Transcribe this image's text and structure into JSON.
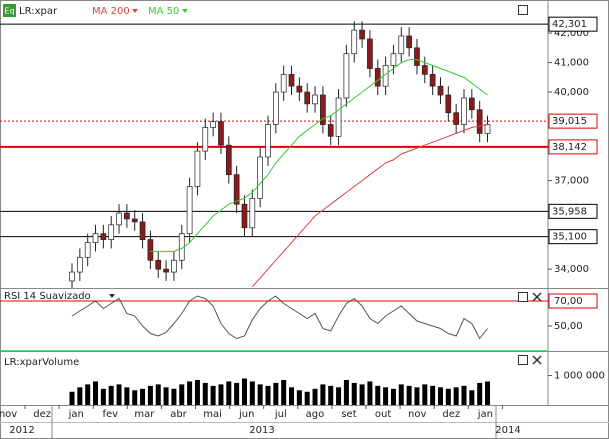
{
  "chart_data": {
    "type": "candlestick",
    "symbol": "LR:xpar",
    "symbol_icon": "Eq",
    "up_color": "#ffffff",
    "down_color": "#8b1a1a",
    "ylim": [
      33.36,
      43.12
    ],
    "yticks": [
      {
        "value": 42,
        "label": "42,000"
      },
      {
        "value": 41,
        "label": "41,000"
      },
      {
        "value": 40,
        "label": "40,000"
      },
      {
        "value": 37,
        "label": "37,000"
      },
      {
        "value": 34,
        "label": "34,000"
      }
    ],
    "candles": {
      "open": [
        33.6,
        33.9,
        34.4,
        34.9,
        35.2,
        35.0,
        35.5,
        35.9,
        35.7,
        35.6,
        35.0,
        34.3,
        34.0,
        33.9,
        34.3,
        35.2,
        36.8,
        38.0,
        38.8,
        39.0,
        38.2,
        37.2,
        36.2,
        35.4,
        36.4,
        37.8,
        38.9,
        40.0,
        40.6,
        40.2,
        40.0,
        39.6,
        39.9,
        38.9,
        38.5,
        39.8,
        41.3,
        42.1,
        41.8,
        40.8,
        40.2,
        40.9,
        41.3,
        41.9,
        41.5,
        40.9,
        40.6,
        40.2,
        39.9,
        39.3,
        38.9,
        39.8,
        39.4,
        38.6
      ],
      "high": [
        34.2,
        34.7,
        35.2,
        35.5,
        35.5,
        35.8,
        36.2,
        36.2,
        36.0,
        35.9,
        35.3,
        34.6,
        34.3,
        34.6,
        35.5,
        37.1,
        38.3,
        39.1,
        39.3,
        39.3,
        38.5,
        37.5,
        36.5,
        36.7,
        38.1,
        39.2,
        40.3,
        40.9,
        40.9,
        40.5,
        40.3,
        40.2,
        40.2,
        39.2,
        40.1,
        41.6,
        42.4,
        42.4,
        42.1,
        41.1,
        41.2,
        41.6,
        42.2,
        42.2,
        41.8,
        41.2,
        40.9,
        40.5,
        40.2,
        39.6,
        40.1,
        40.1,
        39.7,
        39.2
      ],
      "low": [
        33.3,
        33.6,
        34.1,
        34.6,
        34.7,
        34.7,
        35.2,
        35.4,
        35.3,
        34.7,
        34.0,
        33.7,
        33.6,
        33.6,
        34.0,
        34.9,
        36.5,
        37.7,
        38.5,
        37.9,
        36.9,
        35.9,
        35.1,
        35.1,
        36.1,
        37.5,
        38.6,
        39.7,
        39.9,
        39.7,
        39.3,
        39.3,
        38.6,
        38.2,
        38.2,
        39.5,
        41.0,
        41.5,
        40.5,
        39.9,
        39.9,
        40.6,
        41.0,
        41.2,
        40.6,
        40.3,
        39.9,
        39.6,
        39.0,
        38.6,
        38.6,
        39.1,
        38.3,
        38.3
      ],
      "close": [
        33.9,
        34.4,
        34.9,
        35.2,
        35.0,
        35.5,
        35.9,
        35.7,
        35.6,
        35.0,
        34.3,
        34.0,
        33.9,
        34.3,
        35.2,
        36.8,
        38.0,
        38.8,
        39.0,
        38.2,
        37.2,
        36.2,
        35.4,
        36.4,
        37.8,
        38.9,
        40.0,
        40.6,
        40.2,
        40.0,
        39.6,
        39.9,
        38.9,
        38.5,
        39.8,
        41.3,
        42.1,
        41.8,
        40.8,
        40.2,
        40.9,
        41.3,
        41.9,
        41.5,
        40.9,
        40.6,
        40.2,
        39.9,
        39.3,
        38.9,
        39.8,
        39.4,
        38.6,
        38.9
      ]
    },
    "series": [
      {
        "name": "MA 200",
        "color": "#e04040",
        "values": [
          null,
          null,
          null,
          null,
          null,
          null,
          null,
          null,
          null,
          null,
          null,
          null,
          null,
          null,
          null,
          null,
          null,
          null,
          null,
          null,
          null,
          null,
          null,
          33.4,
          33.7,
          34.0,
          34.3,
          34.6,
          34.9,
          35.2,
          35.5,
          35.8,
          36.0,
          36.2,
          36.4,
          36.6,
          36.8,
          37.0,
          37.2,
          37.4,
          37.6,
          37.7,
          37.9,
          38.0,
          38.1,
          38.2,
          38.3,
          38.4,
          38.5,
          38.6,
          38.7,
          38.8,
          38.85,
          38.9
        ]
      },
      {
        "name": "MA 50",
        "color": "#33cc33",
        "values": [
          null,
          null,
          null,
          null,
          null,
          null,
          null,
          null,
          null,
          null,
          34.6,
          34.6,
          34.6,
          34.6,
          34.7,
          34.9,
          35.2,
          35.5,
          35.8,
          36.0,
          36.2,
          36.3,
          36.4,
          36.6,
          36.9,
          37.2,
          37.6,
          37.9,
          38.2,
          38.5,
          38.7,
          38.9,
          39.1,
          39.2,
          39.4,
          39.6,
          39.8,
          40.0,
          40.2,
          40.4,
          40.6,
          40.8,
          41.0,
          41.1,
          41.1,
          41.0,
          40.9,
          40.8,
          40.7,
          40.6,
          40.5,
          40.3,
          40.1,
          39.9
        ]
      }
    ],
    "price_lines": [
      {
        "value": 42.301,
        "label": "42,301",
        "color": "#000000",
        "style": "solid"
      },
      {
        "value": 39.015,
        "label": "39,015",
        "color": "#e00000",
        "style": "dotted"
      },
      {
        "value": 38.142,
        "label": "38,142",
        "color": "#e00000",
        "style": "thick"
      },
      {
        "value": 35.958,
        "label": "35,958",
        "color": "#000000",
        "style": "solid"
      },
      {
        "value": 35.1,
        "label": "35,100",
        "color": "#000000",
        "style": "solid"
      }
    ],
    "rsi": {
      "title": "RSI 14 Suavizado",
      "color": "#555555",
      "ylim": [
        29.2,
        79.6
      ],
      "yticks": [
        {
          "value": 70,
          "label": "70,00"
        },
        {
          "value": 50,
          "label": "50,00"
        }
      ],
      "upper": 70,
      "upper_color": "#e00000",
      "lower": 30,
      "lower_color": "#33cc33",
      "values": [
        58,
        62,
        66,
        70,
        64,
        68,
        72,
        60,
        58,
        50,
        44,
        42,
        45,
        52,
        60,
        70,
        74,
        72,
        66,
        52,
        44,
        40,
        42,
        55,
        64,
        70,
        74,
        68,
        64,
        60,
        56,
        60,
        48,
        46,
        58,
        68,
        72,
        66,
        56,
        52,
        58,
        62,
        66,
        60,
        54,
        52,
        50,
        48,
        44,
        42,
        56,
        52,
        40,
        48
      ]
    },
    "volume": {
      "title": "LR:xparVolume",
      "color": "#000000",
      "ylim": [
        0,
        1800000
      ],
      "yticks": [
        {
          "value": 1000000,
          "label": "1 000 000"
        }
      ],
      "values": [
        450000,
        600000,
        700000,
        800000,
        550000,
        650000,
        700000,
        600000,
        500000,
        550000,
        650000,
        700000,
        600000,
        550000,
        700000,
        800000,
        850000,
        750000,
        650000,
        700000,
        800000,
        750000,
        900000,
        800000,
        700000,
        650000,
        750000,
        850000,
        600000,
        500000,
        450000,
        550000,
        700000,
        650000,
        600000,
        850000,
        750000,
        700000,
        800000,
        650000,
        600000,
        550000,
        700000,
        650000,
        600000,
        700000,
        650000,
        600000,
        550000,
        600000,
        650000,
        500000,
        750000,
        800000
      ]
    },
    "months": [
      "nov",
      "dez",
      "jan",
      "fev",
      "mar",
      "abr",
      "mai",
      "jun",
      "jul",
      "ago",
      "set",
      "out",
      "nov",
      "dez",
      "jan"
    ],
    "years": [
      "2012",
      "2013",
      "2014"
    ]
  }
}
